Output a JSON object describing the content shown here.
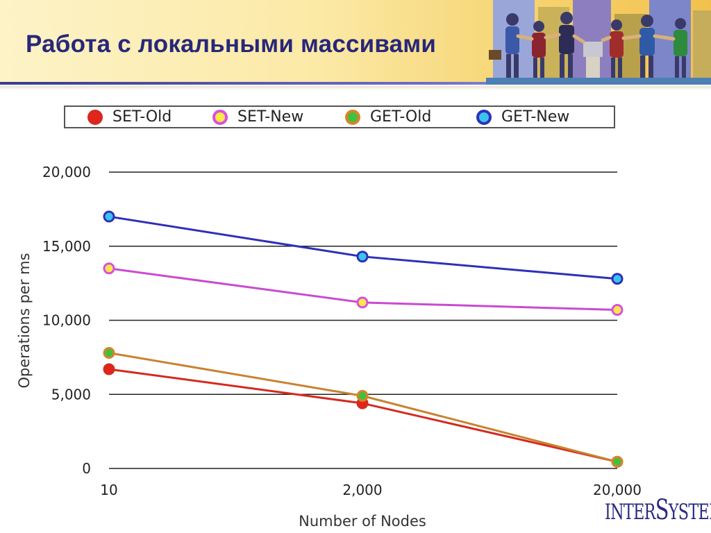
{
  "slide": {
    "title": "Работа с локальными массивами"
  },
  "brand": {
    "logo_text": "InterSystems"
  },
  "colors": {
    "title": "#27277a",
    "header_bg": "#fbe9a6"
  },
  "chart_data": {
    "type": "line",
    "categories": [
      "10",
      "2,000",
      "20,000"
    ],
    "xlabel": "Number of Nodes",
    "ylabel": "Operations per ms",
    "ylim": [
      0,
      20000
    ],
    "yticks": [
      0,
      5000,
      10000,
      15000,
      20000
    ],
    "ytick_labels": [
      "0",
      "5,000",
      "10,000",
      "15,000",
      "20,000"
    ],
    "grid": true,
    "legend_position": "top",
    "series": [
      {
        "name": "SET-Old",
        "values": [
          6700,
          4400,
          450
        ],
        "line": "#d42a1f",
        "fill": "#e3241b",
        "ring": "#d42a1f"
      },
      {
        "name": "SET-New",
        "values": [
          13500,
          11200,
          10700
        ],
        "line": "#c84bd0",
        "fill": "#ffe94a",
        "ring": "#d94ee0"
      },
      {
        "name": "GET-Old",
        "values": [
          7800,
          4900,
          450
        ],
        "line": "#c9822f",
        "fill": "#3fc23b",
        "ring": "#d9832a"
      },
      {
        "name": "GET-New",
        "values": [
          17000,
          14300,
          12800
        ],
        "line": "#2f2fb8",
        "fill": "#39c4f0",
        "ring": "#2f2fb8"
      }
    ]
  }
}
